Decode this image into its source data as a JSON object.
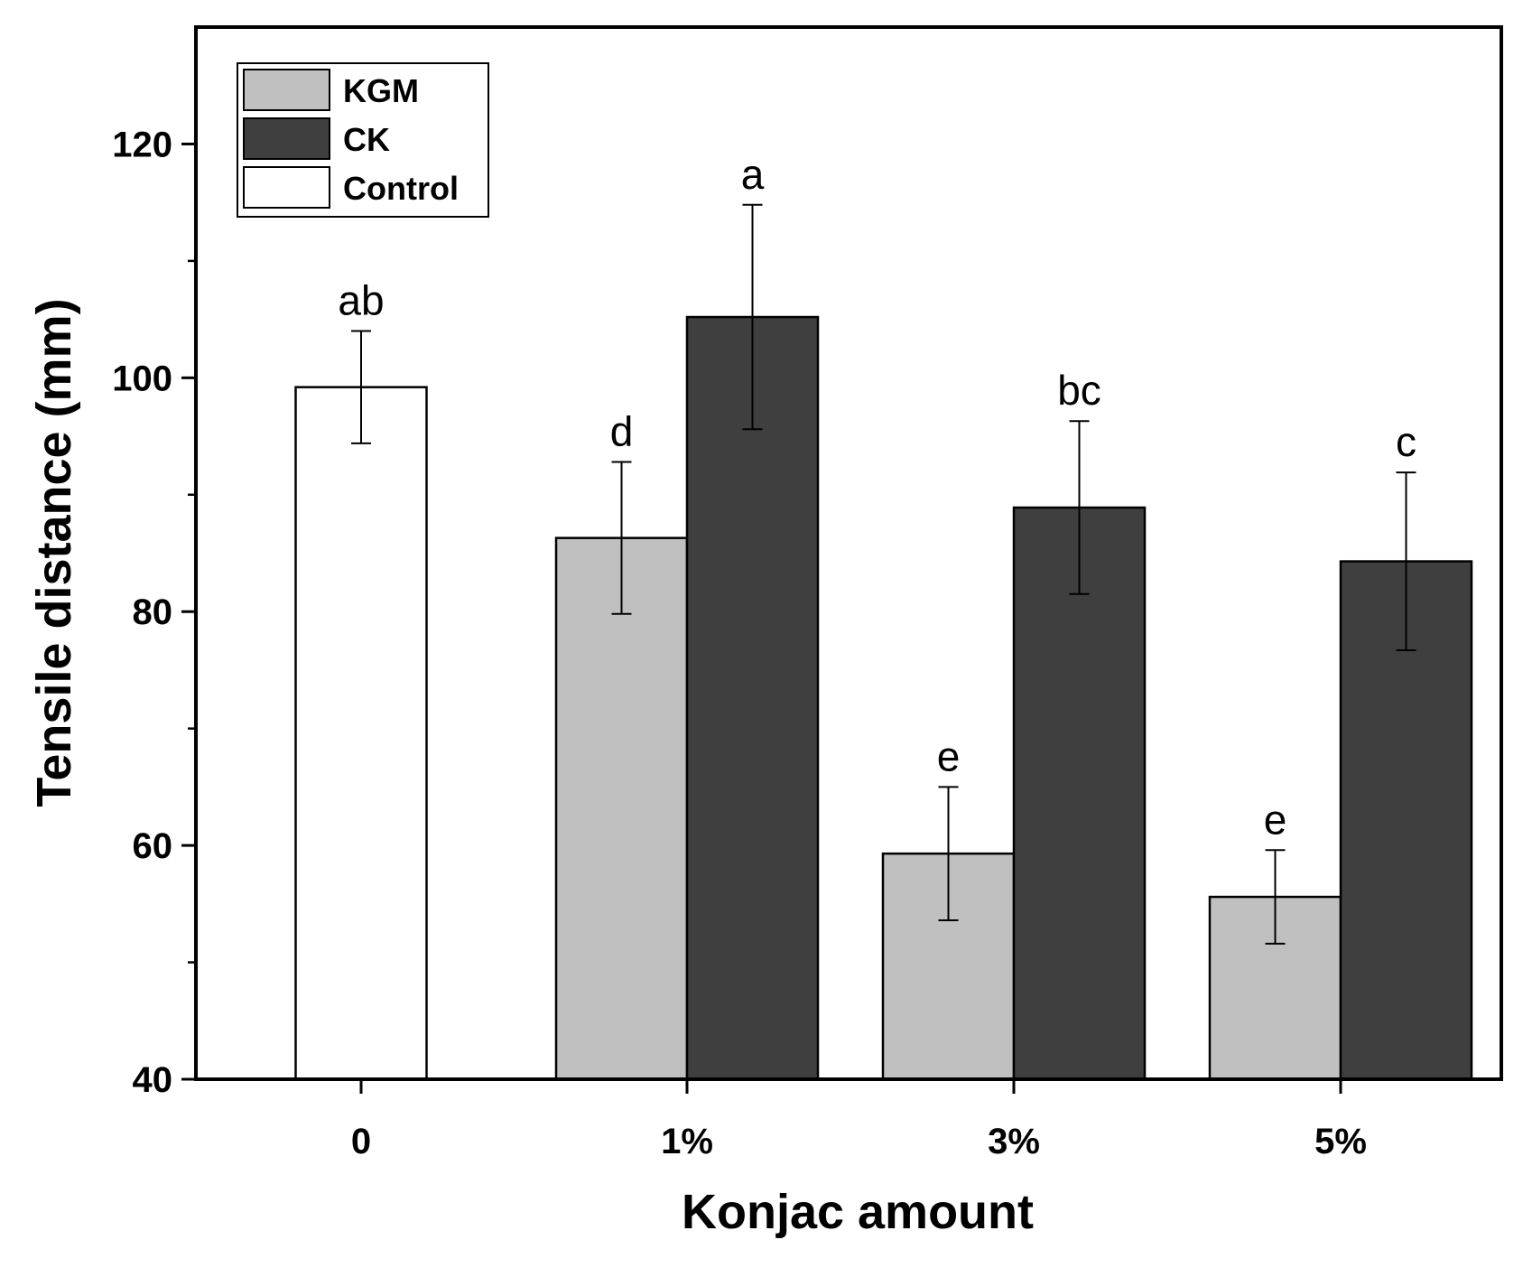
{
  "chart_data": {
    "type": "bar",
    "title": "",
    "xlabel": "Konjac amount",
    "ylabel": "Tensile distance (mm)",
    "categories": [
      "0",
      "1%",
      "3%",
      "5%"
    ],
    "ylim": [
      40,
      130
    ],
    "yticks": [
      40,
      60,
      80,
      100,
      120
    ],
    "legend_position": "top-left",
    "series": [
      {
        "name": "KGM",
        "color": "#c0c0c0",
        "values": [
          null,
          86.3,
          59.3,
          55.6
        ],
        "errors": [
          null,
          6.5,
          5.7,
          4.0
        ],
        "labels": [
          null,
          "d",
          "e",
          "e"
        ]
      },
      {
        "name": "CK",
        "color": "#3f3f3f",
        "values": [
          null,
          105.2,
          88.9,
          84.3
        ],
        "errors": [
          null,
          9.6,
          7.4,
          7.6
        ],
        "labels": [
          null,
          "a",
          "bc",
          "c"
        ]
      },
      {
        "name": "Control",
        "color": "#ffffff",
        "values": [
          99.2,
          null,
          null,
          null
        ],
        "errors": [
          4.8,
          null,
          null,
          null
        ],
        "labels": [
          "ab",
          null,
          null,
          null
        ]
      }
    ]
  }
}
